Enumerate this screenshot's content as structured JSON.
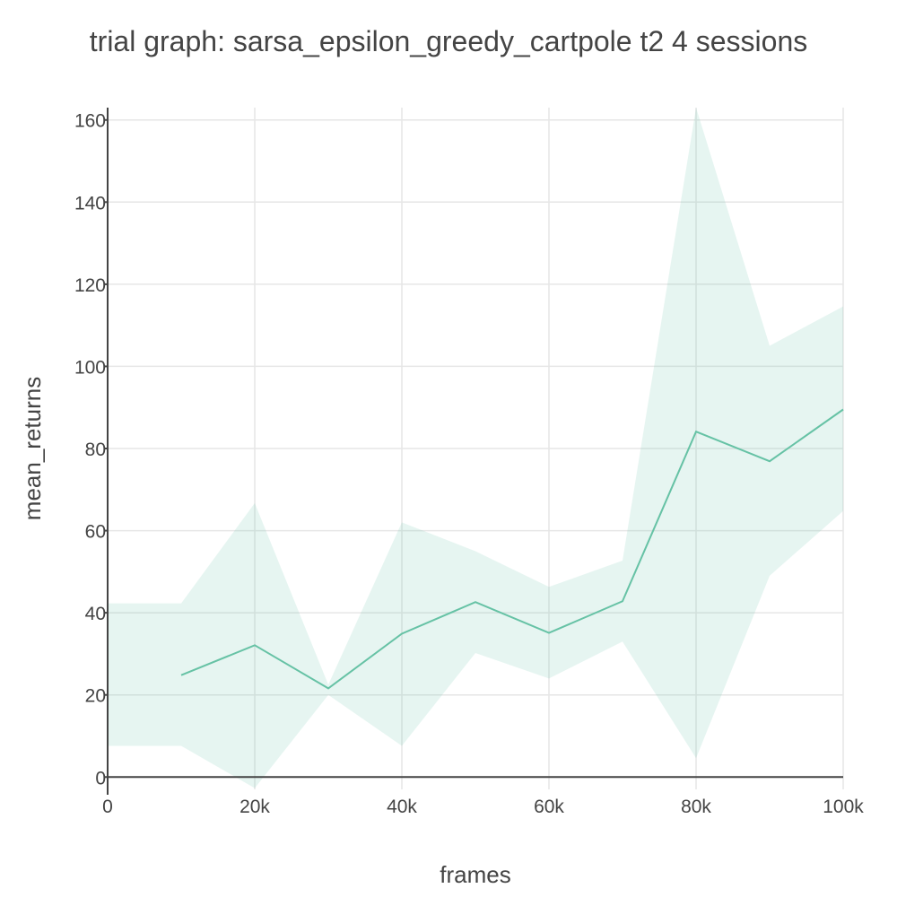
{
  "chart_data": {
    "type": "line",
    "title": "trial graph: sarsa_epsilon_greedy_cartpole t2 4 sessions",
    "xlabel": "frames",
    "ylabel": "mean_returns",
    "xlim": [
      0,
      100000
    ],
    "ylim": [
      -3,
      163
    ],
    "x_ticks": [
      0,
      20000,
      40000,
      60000,
      80000,
      100000
    ],
    "x_tick_labels": [
      "0",
      "20k",
      "40k",
      "60k",
      "80k",
      "100k"
    ],
    "y_ticks": [
      0,
      20,
      40,
      60,
      80,
      100,
      120,
      140,
      160
    ],
    "y_tick_labels": [
      "0",
      "20",
      "40",
      "60",
      "80",
      "100",
      "120",
      "140",
      "160"
    ],
    "grid": true,
    "colors": {
      "line": "#66c2a5",
      "band": "rgba(102,194,165,0.16)",
      "grid": "#e6e6e6",
      "axis": "#444444"
    },
    "series": [
      {
        "x": [
          10000,
          20000,
          30000,
          40000,
          50000,
          60000,
          70000,
          80000,
          90000,
          100000
        ],
        "mean": [
          24.8,
          32.1,
          21.6,
          34.9,
          42.6,
          35.1,
          42.8,
          84.1,
          76.9,
          89.5
        ]
      }
    ],
    "band": {
      "x": [
        0,
        10000,
        20000,
        30000,
        40000,
        50000,
        60000,
        70000,
        80000,
        90000,
        100000
      ],
      "upper": [
        42.3,
        42.3,
        66.7,
        22.5,
        62.0,
        55.0,
        46.3,
        52.7,
        163.0,
        105.0,
        114.6
      ],
      "lower": [
        7.6,
        7.6,
        -2.7,
        20.0,
        7.6,
        30.2,
        24.0,
        33.0,
        4.6,
        49.0,
        64.8
      ]
    }
  }
}
